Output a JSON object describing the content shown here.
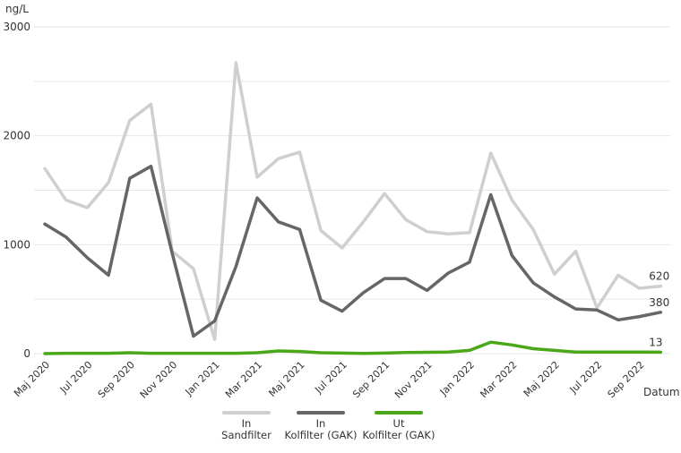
{
  "chart_data": {
    "type": "line",
    "ylabel": "ng/L",
    "xlabel": "Datum",
    "ylim": [
      0,
      3000
    ],
    "yticks": [
      0,
      1000,
      2000,
      3000
    ],
    "grid": true,
    "x_tick_labels": [
      "Maj 2020",
      "Jul 2020",
      "Sep 2020",
      "Nov 2020",
      "Jan 2021",
      "Mar 2021",
      "Maj 2021",
      "Jul 2021",
      "Sep 2021",
      "Nov 2021",
      "Jan 2022",
      "Mar 2022",
      "Maj 2022",
      "Jul 2022",
      "Sep 2022"
    ],
    "x": [
      "2020-05",
      "2020-06",
      "2020-07",
      "2020-08",
      "2020-09",
      "2020-10",
      "2020-11",
      "2020-12",
      "2021-01",
      "2021-02",
      "2021-03",
      "2021-04",
      "2021-05",
      "2021-06",
      "2021-07",
      "2021-08",
      "2021-09",
      "2021-10",
      "2021-11",
      "2021-12",
      "2022-01",
      "2022-02",
      "2022-03",
      "2022-04",
      "2022-05",
      "2022-06",
      "2022-07",
      "2022-08",
      "2022-09",
      "2022-10"
    ],
    "series": [
      {
        "name": "In Sandfilter",
        "legend_lines": [
          "In",
          "Sandfilter"
        ],
        "color": "#cfcfcf",
        "values": [
          1700,
          1410,
          1340,
          1570,
          2140,
          2290,
          940,
          780,
          130,
          2670,
          1620,
          1790,
          1850,
          1130,
          970,
          1210,
          1470,
          1230,
          1120,
          1100,
          1110,
          1840,
          1410,
          1140,
          730,
          940,
          420,
          720,
          600,
          620
        ],
        "end_label": "620"
      },
      {
        "name": "In Kolfilter (GAK)",
        "legend_lines": [
          "In",
          "Kolfilter (GAK)"
        ],
        "color": "#666666",
        "values": [
          1190,
          1070,
          880,
          720,
          1610,
          1720,
          920,
          160,
          300,
          800,
          1430,
          1210,
          1140,
          490,
          390,
          560,
          690,
          690,
          580,
          740,
          840,
          1460,
          900,
          650,
          520,
          410,
          400,
          310,
          340,
          380
        ],
        "end_label": "380"
      },
      {
        "name": "Ut Kolfilter (GAK)",
        "legend_lines": [
          "Ut",
          "Kolfilter (GAK)"
        ],
        "color": "#4aa818",
        "values": [
          0,
          3,
          3,
          3,
          8,
          3,
          3,
          3,
          3,
          3,
          8,
          25,
          20,
          8,
          5,
          2,
          5,
          10,
          12,
          15,
          30,
          105,
          80,
          45,
          30,
          15,
          15,
          14,
          14,
          13
        ],
        "end_label": "13"
      }
    ]
  }
}
